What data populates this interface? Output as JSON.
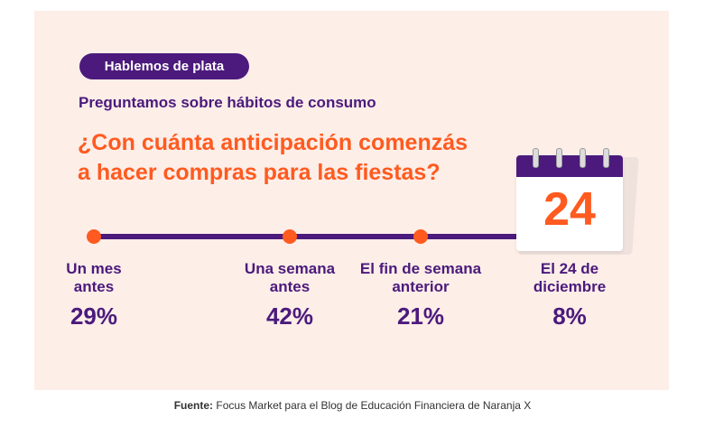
{
  "tag": "Hablemos de plata",
  "subtitle": "Preguntamos sobre hábitos de consumo",
  "question_line1": "¿Con cuánta anticipación comenzás",
  "question_line2": "a hacer compras para las fiestas?",
  "calendar_number": "24",
  "source_label": "Fuente:",
  "source_text": " Focus Market para el Blog de Educación Financiera de Naranja X",
  "colors": {
    "purple": "#4b1a7c",
    "orange": "#ff5a1f",
    "background": "#fdeee8"
  },
  "chart_data": {
    "type": "table",
    "categories": [
      [
        "Un mes",
        "antes"
      ],
      [
        "Una semana",
        "antes"
      ],
      [
        "El fin de semana",
        "anterior"
      ],
      [
        "El 24 de",
        "diciembre"
      ]
    ],
    "values": [
      29,
      42,
      21,
      8
    ],
    "value_labels": [
      "29%",
      "42%",
      "21%",
      "8%"
    ]
  }
}
